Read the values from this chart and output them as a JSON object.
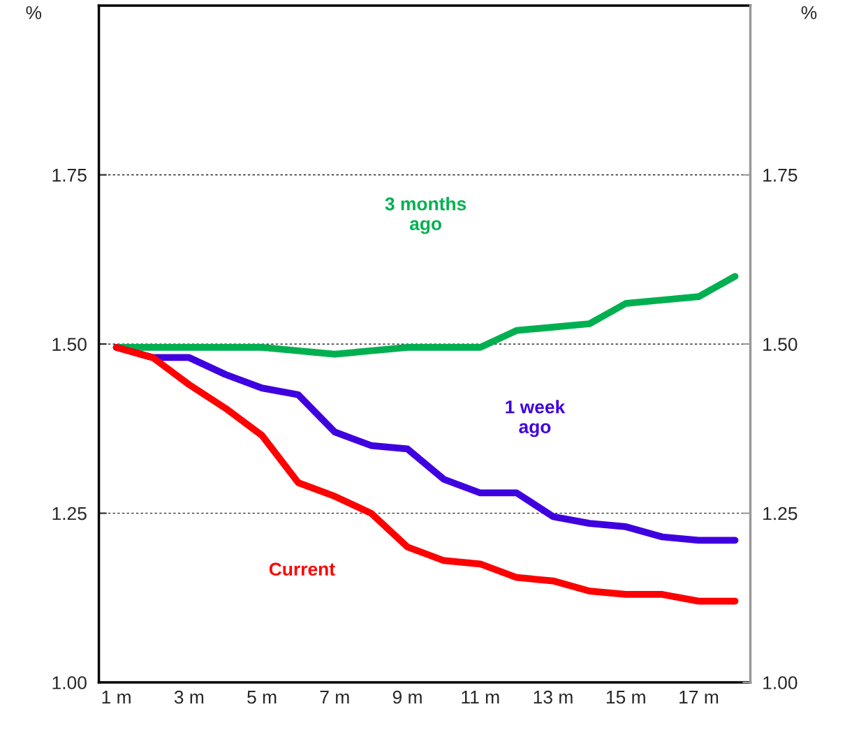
{
  "chart_data": {
    "type": "line",
    "categories": [
      "1 m",
      null,
      "3 m",
      null,
      "5 m",
      null,
      "7 m",
      null,
      "9 m",
      null,
      "11 m",
      null,
      "13 m",
      null,
      "15 m",
      null,
      "17 m",
      null
    ],
    "series": [
      {
        "name": "3 months\nago",
        "color": "#00b050",
        "values": [
          1.495,
          1.495,
          1.495,
          1.495,
          1.495,
          1.49,
          1.485,
          1.49,
          1.495,
          1.495,
          1.495,
          1.52,
          1.525,
          1.53,
          1.56,
          1.565,
          1.57,
          1.6
        ]
      },
      {
        "name": "1 week\nago",
        "color": "#3f00e0",
        "values": [
          1.495,
          1.48,
          1.48,
          1.455,
          1.435,
          1.425,
          1.37,
          1.35,
          1.345,
          1.3,
          1.28,
          1.28,
          1.245,
          1.235,
          1.23,
          1.215,
          1.21,
          1.21
        ]
      },
      {
        "name": "Current",
        "color": "#ff0000",
        "values": [
          1.495,
          1.48,
          1.44,
          1.405,
          1.365,
          1.295,
          1.275,
          1.25,
          1.2,
          1.18,
          1.175,
          1.155,
          1.15,
          1.135,
          1.13,
          1.13,
          1.12,
          1.12
        ]
      }
    ],
    "ylabel": "%",
    "y2label": "%",
    "ylim": [
      1.0,
      2.0
    ],
    "yticks": [
      {
        "value": 1.0,
        "label": "1.00"
      },
      1.25,
      {
        "value": 1.5,
        "label": "1.50"
      },
      1.75
    ],
    "y2lim": [
      1.0,
      2.0
    ],
    "y2ticks": [
      {
        "value": 1.0,
        "label": "1.00"
      },
      1.25,
      {
        "value": 1.5,
        "label": "1.50"
      },
      1.75
    ],
    "grid": "y",
    "legend": false,
    "marker": "none",
    "line_style": "solid"
  }
}
